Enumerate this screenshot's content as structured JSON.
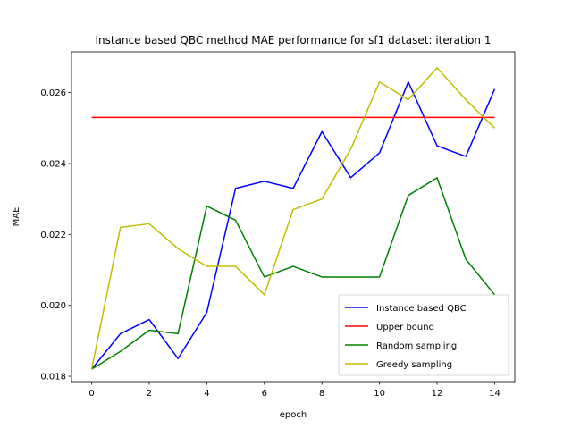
{
  "chart_data": {
    "type": "line",
    "title": "Instance based QBC method MAE performance for sf1 dataset: iteration 1",
    "xlabel": "epoch",
    "ylabel": "MAE",
    "xlim": [
      -0.7,
      14.7
    ],
    "ylim": [
      0.01785,
      0.02715
    ],
    "xticks": [
      0,
      2,
      4,
      6,
      8,
      10,
      12,
      14
    ],
    "xtick_labels": [
      "0",
      "2",
      "4",
      "6",
      "8",
      "10",
      "12",
      "14"
    ],
    "yticks": [
      0.018,
      0.02,
      0.022,
      0.024,
      0.026
    ],
    "ytick_labels": [
      "0.018",
      "0.020",
      "0.022",
      "0.024",
      "0.026"
    ],
    "grid": false,
    "legend_position": "lower-right",
    "x": [
      0,
      1,
      2,
      3,
      4,
      5,
      6,
      7,
      8,
      9,
      10,
      11,
      12,
      13,
      14
    ],
    "series": [
      {
        "name": "Instance based QBC",
        "color": "#0000ff",
        "values": [
          0.0182,
          0.0192,
          0.0196,
          0.0185,
          0.0198,
          0.0233,
          0.0235,
          0.0233,
          0.0249,
          0.0236,
          0.0243,
          0.0263,
          0.0245,
          0.0242,
          0.0261
        ]
      },
      {
        "name": "Upper bound",
        "color": "#ff0000",
        "values": [
          0.0253,
          0.0253,
          0.0253,
          0.0253,
          0.0253,
          0.0253,
          0.0253,
          0.0253,
          0.0253,
          0.0253,
          0.0253,
          0.0253,
          0.0253,
          0.0253,
          0.0253
        ]
      },
      {
        "name": "Random sampling",
        "color": "#008000",
        "values": [
          0.0182,
          0.0187,
          0.0193,
          0.0192,
          0.0228,
          0.0224,
          0.0208,
          0.0211,
          0.0208,
          0.0208,
          0.0208,
          0.0231,
          0.0236,
          0.0213,
          0.0203
        ]
      },
      {
        "name": "Greedy sampling",
        "color": "#bfbf00",
        "values": [
          0.0182,
          0.0222,
          0.0223,
          0.0216,
          0.0211,
          0.0211,
          0.0203,
          0.0227,
          0.023,
          0.0244,
          0.0263,
          0.0258,
          0.0267,
          0.0258,
          0.025
        ]
      }
    ]
  }
}
